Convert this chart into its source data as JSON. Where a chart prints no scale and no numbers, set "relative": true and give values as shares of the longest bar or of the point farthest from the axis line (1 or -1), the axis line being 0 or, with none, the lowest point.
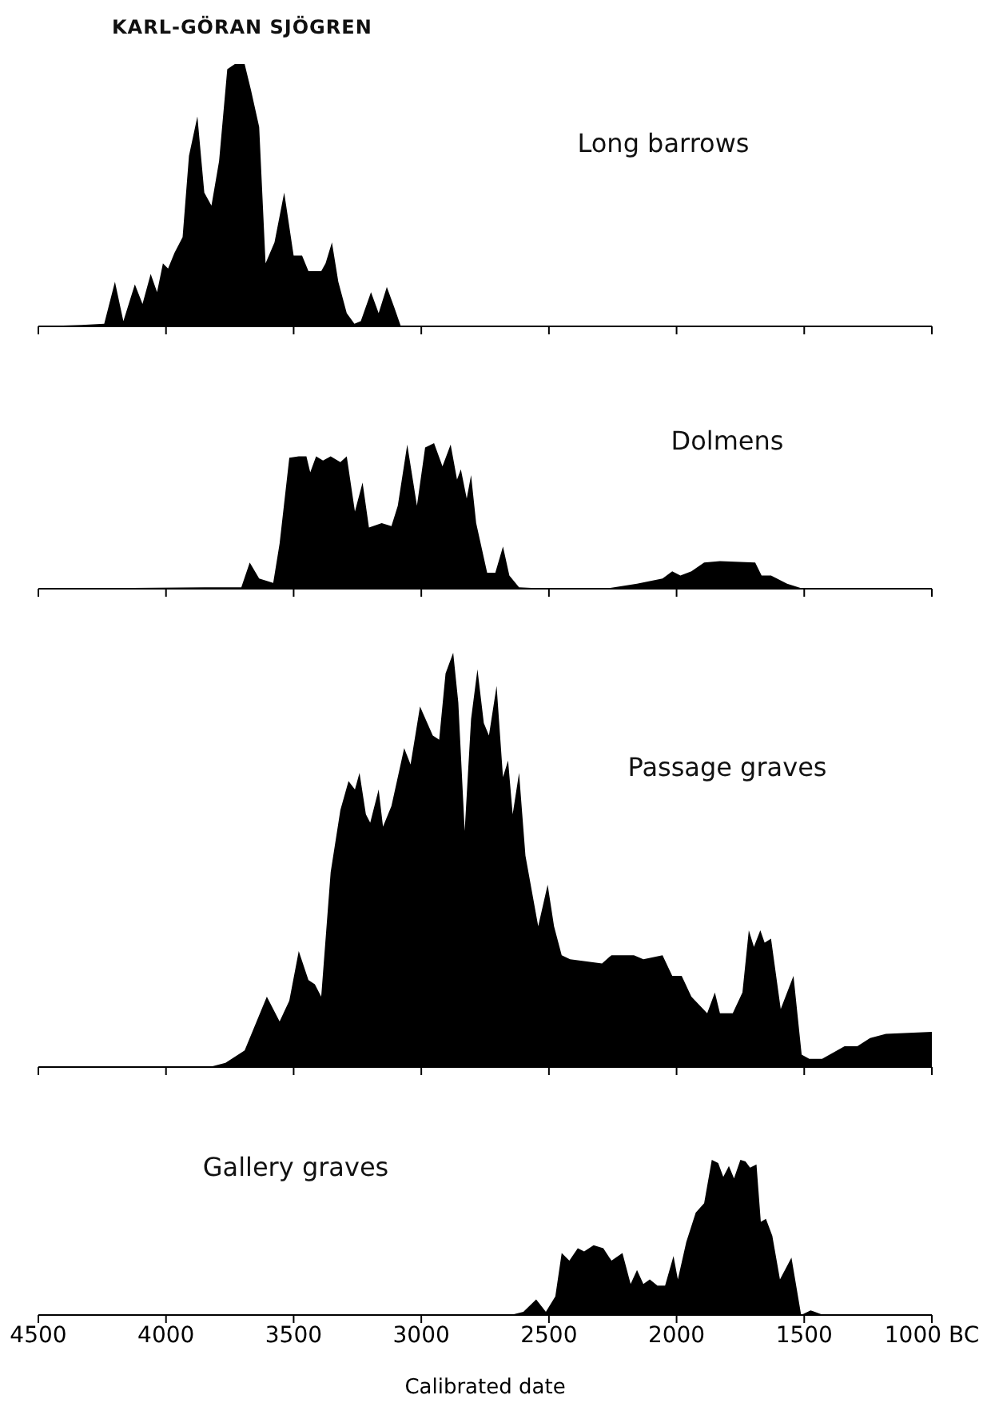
{
  "chart_data": [
    {
      "type": "area",
      "title": "Long barrows",
      "annotations": [
        "KARL-GÖRAN SJÖGREN"
      ],
      "relative": true,
      "color": "#000000",
      "xlim": [
        4500,
        1000
      ],
      "xticks": [
        4500,
        4000,
        3500,
        3000,
        2500,
        2000,
        1500,
        1000
      ],
      "tick_labels": false,
      "x": [
        4500,
        4330,
        4242,
        4200,
        4167,
        4122,
        4092,
        4060,
        4035,
        4012,
        3992,
        3967,
        3935,
        3910,
        3877,
        3850,
        3822,
        3792,
        3760,
        3730,
        3692,
        3667,
        3635,
        3610,
        3575,
        3537,
        3500,
        3467,
        3442,
        3392,
        3375,
        3350,
        3325,
        3292,
        3262,
        3237,
        3197,
        3167,
        3135,
        3105,
        3080,
        2985,
        1000
      ],
      "values": [
        0,
        0.005,
        0.01,
        0.17,
        0.02,
        0.16,
        0.085,
        0.2,
        0.13,
        0.24,
        0.22,
        0.28,
        0.34,
        0.65,
        0.8,
        0.51,
        0.46,
        0.63,
        0.98,
        1,
        1,
        0.9,
        0.76,
        0.24,
        0.32,
        0.51,
        0.27,
        0.27,
        0.21,
        0.21,
        0.24,
        0.32,
        0.17,
        0.05,
        0.01,
        0.02,
        0.13,
        0.05,
        0.15,
        0.07,
        0,
        0,
        0
      ]
    },
    {
      "type": "area",
      "title": "Dolmens",
      "relative": true,
      "color": "#000000",
      "xlim": [
        4500,
        1000
      ],
      "xticks": [
        4500,
        4000,
        3500,
        3000,
        2500,
        2000,
        1500,
        1000
      ],
      "tick_labels": false,
      "x": [
        4500,
        3805,
        3705,
        3672,
        3635,
        3580,
        3555,
        3517,
        3480,
        3450,
        3435,
        3412,
        3385,
        3355,
        3317,
        3292,
        3260,
        3230,
        3205,
        3155,
        3117,
        3092,
        3055,
        3017,
        2985,
        2950,
        2917,
        2885,
        2860,
        2845,
        2822,
        2805,
        2785,
        2742,
        2710,
        2680,
        2655,
        2617,
        2505,
        2280,
        2155,
        2055,
        2017,
        1985,
        1942,
        1892,
        1830,
        1692,
        1667,
        1630,
        1567,
        1505,
        1000
      ],
      "values": [
        0,
        0.01,
        0.01,
        0.18,
        0.07,
        0.04,
        0.31,
        0.9,
        0.91,
        0.91,
        0.8,
        0.91,
        0.88,
        0.91,
        0.87,
        0.91,
        0.53,
        0.73,
        0.42,
        0.45,
        0.43,
        0.57,
        0.99,
        0.57,
        0.97,
        1,
        0.84,
        0.99,
        0.75,
        0.82,
        0.62,
        0.78,
        0.45,
        0.11,
        0.11,
        0.29,
        0.09,
        0.01,
        0,
        0,
        0.035,
        0.07,
        0.12,
        0.09,
        0.12,
        0.18,
        0.19,
        0.18,
        0.09,
        0.09,
        0.035,
        0,
        0
      ]
    },
    {
      "type": "area",
      "title": "Passage graves",
      "relative": true,
      "color": "#000000",
      "xlim": [
        4500,
        1000
      ],
      "xticks": [
        4500,
        4000,
        3500,
        3000,
        2500,
        2000,
        1500,
        1000
      ],
      "tick_labels": false,
      "x": [
        4500,
        3830,
        3767,
        3692,
        3605,
        3555,
        3517,
        3480,
        3442,
        3417,
        3392,
        3355,
        3317,
        3285,
        3260,
        3242,
        3217,
        3200,
        3167,
        3150,
        3117,
        3067,
        3042,
        3005,
        2955,
        2930,
        2905,
        2875,
        2855,
        2830,
        2805,
        2780,
        2755,
        2735,
        2705,
        2680,
        2660,
        2642,
        2617,
        2592,
        2542,
        2505,
        2480,
        2450,
        2417,
        2292,
        2255,
        2167,
        2130,
        2055,
        2017,
        1980,
        1942,
        1880,
        1850,
        1830,
        1780,
        1742,
        1717,
        1697,
        1672,
        1655,
        1630,
        1592,
        1542,
        1510,
        1480,
        1430,
        1342,
        1292,
        1242,
        1180,
        1000
      ],
      "values": [
        0,
        0,
        0.01,
        0.04,
        0.17,
        0.11,
        0.16,
        0.28,
        0.21,
        0.2,
        0.17,
        0.47,
        0.62,
        0.69,
        0.67,
        0.71,
        0.61,
        0.59,
        0.67,
        0.58,
        0.63,
        0.77,
        0.73,
        0.87,
        0.8,
        0.79,
        0.95,
        1,
        0.88,
        0.57,
        0.84,
        0.96,
        0.83,
        0.8,
        0.92,
        0.7,
        0.74,
        0.61,
        0.71,
        0.51,
        0.34,
        0.44,
        0.34,
        0.27,
        0.26,
        0.25,
        0.27,
        0.27,
        0.26,
        0.27,
        0.22,
        0.22,
        0.17,
        0.13,
        0.18,
        0.13,
        0.13,
        0.18,
        0.33,
        0.29,
        0.33,
        0.3,
        0.31,
        0.14,
        0.22,
        0.03,
        0.02,
        0.02,
        0.05,
        0.05,
        0.07,
        0.08,
        0.085
      ]
    },
    {
      "type": "area",
      "title": "Gallery graves",
      "xlabel": "Calibrated date",
      "relative": true,
      "color": "#000000",
      "xlim": [
        4500,
        1000
      ],
      "xticks": [
        4500,
        4000,
        3500,
        3000,
        2500,
        2000,
        1500,
        {
          "value": 1000,
          "label": "1000 BC"
        }
      ],
      "x": [
        4500,
        2900,
        2650,
        2600,
        2550,
        2512,
        2475,
        2450,
        2420,
        2387,
        2362,
        2325,
        2287,
        2255,
        2212,
        2180,
        2155,
        2130,
        2105,
        2075,
        2045,
        2012,
        1995,
        1962,
        1925,
        1892,
        1862,
        1837,
        1817,
        1795,
        1775,
        1750,
        1730,
        1712,
        1687,
        1670,
        1650,
        1625,
        1595,
        1550,
        1512,
        1475,
        1425,
        1000
      ],
      "values": [
        0,
        0,
        0,
        0.02,
        0.1,
        0.02,
        0.12,
        0.4,
        0.35,
        0.43,
        0.41,
        0.45,
        0.43,
        0.35,
        0.4,
        0.2,
        0.29,
        0.2,
        0.23,
        0.19,
        0.19,
        0.38,
        0.23,
        0.47,
        0.66,
        0.72,
        1,
        0.98,
        0.89,
        0.96,
        0.88,
        1,
        0.99,
        0.95,
        0.97,
        0.6,
        0.62,
        0.51,
        0.23,
        0.37,
        0,
        0.03,
        0,
        0
      ]
    }
  ]
}
